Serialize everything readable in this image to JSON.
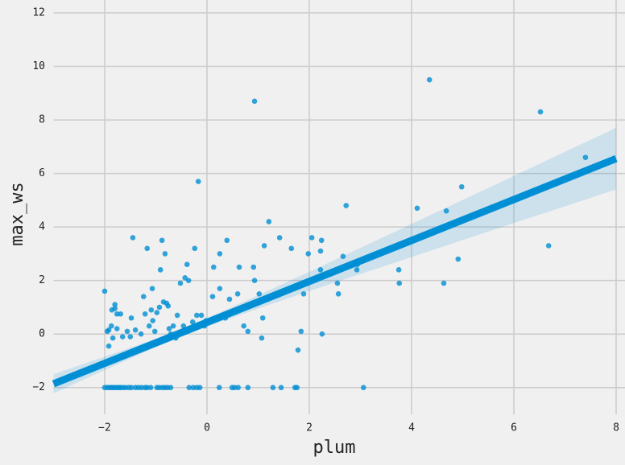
{
  "chart_data": {
    "type": "scatter",
    "xlabel": "plum",
    "ylabel": "max_ws",
    "color": "#008fd5",
    "grid": true,
    "xlim": [
      -3,
      8
    ],
    "ylim": [
      -3,
      12
    ],
    "xticks": [
      {
        "value": -2,
        "label": "−2"
      },
      0,
      2,
      4,
      6,
      8
    ],
    "yticks": [
      {
        "value": -2,
        "label": "−2"
      },
      0,
      2,
      4,
      6,
      8,
      10,
      12
    ],
    "x": [
      -2.0,
      -1.95,
      -1.91,
      -1.87,
      -1.84,
      -1.8,
      -1.76,
      -1.72,
      -1.69,
      -1.64,
      -1.59,
      -1.53,
      -1.48,
      -1.4,
      -1.34,
      -1.28,
      -1.21,
      -1.17,
      -1.1,
      -0.98,
      -0.93,
      -0.87,
      -0.82,
      -0.77,
      -0.71,
      -0.35,
      -0.27,
      -0.2,
      -0.14,
      0.24,
      0.49,
      0.54,
      0.61,
      0.8,
      1.29,
      1.45,
      1.72,
      1.76,
      3.06,
      -2.0,
      -1.8,
      -1.8,
      -1.86,
      -1.92,
      -1.95,
      -1.87,
      -1.84,
      -1.92,
      -1.76,
      -1.69,
      -1.76,
      -1.65,
      -1.56,
      -1.5,
      -1.45,
      -1.48,
      -1.4,
      -1.29,
      -1.24,
      -1.21,
      -1.17,
      -1.13,
      -1.09,
      -1.07,
      -1.06,
      -1.02,
      -0.98,
      -0.93,
      -0.91,
      -0.88,
      -0.85,
      -0.82,
      -0.79,
      -0.76,
      -0.74,
      -0.71,
      -0.66,
      -0.61,
      -0.58,
      -0.52,
      -0.46,
      -0.43,
      -0.39,
      -0.36,
      -0.33,
      -0.28,
      -0.24,
      -0.2,
      -0.17,
      -0.11,
      -0.05,
      -0.02,
      0.11,
      0.13,
      0.25,
      0.25,
      0.36,
      0.39,
      0.44,
      0.6,
      0.63,
      0.68,
      0.72,
      0.8,
      0.91,
      0.93,
      0.93,
      1.02,
      1.07,
      1.09,
      1.12,
      1.21,
      1.42,
      1.65,
      1.78,
      1.84,
      1.89,
      1.98,
      2.05,
      2.22,
      2.22,
      2.24,
      2.25,
      2.55,
      2.57,
      2.66,
      2.72,
      2.93,
      2.94,
      3.75,
      3.76,
      4.11,
      4.35,
      4.63,
      4.68,
      4.91,
      4.98,
      6.52,
      6.68,
      7.4
    ],
    "values": [
      -2,
      -2,
      -2,
      -2,
      -2,
      -2,
      -2,
      -2,
      -2,
      -2,
      -2,
      -2,
      -2,
      -2,
      -2,
      -2,
      -2,
      -2,
      -2,
      -2,
      -2,
      -2,
      -2,
      -2,
      -2,
      -2,
      -2,
      -2,
      -2,
      -2,
      -2,
      -2,
      -2,
      -2,
      -2,
      -2,
      -2,
      -2,
      -2,
      1.6,
      1.1,
      0.95,
      0.9,
      0.15,
      0.1,
      0.3,
      -0.15,
      -0.45,
      0.2,
      0.75,
      0.75,
      -0.1,
      0.1,
      -0.1,
      3.6,
      0.6,
      0.15,
      0,
      1.4,
      0.75,
      3.2,
      0.3,
      0.9,
      1.7,
      0.5,
      0.1,
      0.8,
      1.0,
      2.4,
      3.5,
      1.2,
      3.0,
      1.15,
      1.05,
      0.2,
      0,
      0.3,
      -0.15,
      0.7,
      1.9,
      0.3,
      2.1,
      2.6,
      2.0,
      0.15,
      0.45,
      3.2,
      0.7,
      5.7,
      0.7,
      0.3,
      0.5,
      1.4,
      2.5,
      3.0,
      1.7,
      0.6,
      3.5,
      1.3,
      1.5,
      2.5,
      1.0,
      0.3,
      0.1,
      2.5,
      2.0,
      8.7,
      1.5,
      -0.15,
      0.6,
      3.3,
      4.2,
      3.6,
      3.2,
      -0.6,
      0.1,
      1.5,
      3.0,
      3.6,
      3.1,
      2.4,
      3.5,
      0,
      1.9,
      1.5,
      2.9,
      4.8,
      2.4,
      2.6,
      2.4,
      1.9,
      4.7,
      9.5,
      1.9,
      4.6,
      2.8,
      5.5,
      8.3,
      3.3,
      6.6
    ],
    "regression": {
      "x": [
        -3,
        -2,
        -1,
        0,
        1,
        2,
        3,
        4,
        5,
        6,
        7,
        8
      ],
      "fit": [
        -1.86,
        -1.095,
        -0.33,
        0.435,
        1.2,
        1.965,
        2.73,
        3.495,
        4.26,
        5.025,
        5.79,
        6.555
      ],
      "lower": [
        -2.22,
        -1.345,
        -0.49,
        0.275,
        0.95,
        1.605,
        2.24,
        2.875,
        3.51,
        4.145,
        4.77,
        5.405
      ],
      "upper": [
        -1.5,
        -0.845,
        -0.17,
        0.595,
        1.45,
        2.325,
        3.22,
        4.115,
        5.01,
        5.905,
        6.81,
        7.705
      ]
    }
  }
}
